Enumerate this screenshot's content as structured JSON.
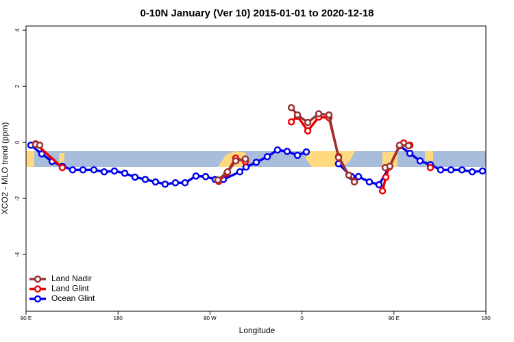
{
  "chart_data": {
    "type": "line",
    "title": "0-10N January (Ver 10)   2015-01-01 to 2020-12-18",
    "x_label": "Longitude",
    "y_label": "XCO2 - MLO trend (ppm)",
    "xlim": [
      90,
      540
    ],
    "ylim": [
      -6.02,
      4.15
    ],
    "xticks": [
      {
        "value": 90,
        "label": "90 E"
      },
      180,
      {
        "value": 270,
        "label": "90 W"
      },
      {
        "value": 360,
        "label": "0"
      },
      {
        "value": 450,
        "label": "90 E"
      },
      {
        "value": 540,
        "label": "180"
      }
    ],
    "yticks": [
      4,
      2,
      0,
      -2,
      -4
    ],
    "legend": "bottomleft",
    "series": [
      {
        "name": "Land Nadir",
        "color": "#993333",
        "x": [
          99.4,
          103.4,
          null,
          277.8,
          287.2,
          295.2,
          304.6,
          null,
          349.6,
          355.6,
          365.7,
          376.4,
          386.4,
          395.8,
          405.9,
          411.3,
          null,
          441.4,
          446.0,
          455.5,
          464.2
        ],
        "values": [
          -0.07,
          -0.1,
          null,
          -1.34,
          -1.05,
          -0.66,
          -0.59,
          null,
          1.24,
          0.98,
          0.71,
          1.02,
          0.98,
          -0.54,
          -1.17,
          -1.41,
          null,
          -0.9,
          -0.85,
          -0.1,
          -0.12
        ]
      },
      {
        "name": "Land Glint",
        "color": "#ee0000",
        "x": [
          99.4,
          125.5,
          null,
          278.5,
          286.5,
          295.2,
          304.6,
          null,
          349.6,
          355.6,
          365.7,
          376.4,
          386.4,
          395.8,
          405.9,
          411.3,
          null,
          438.8,
          442.1,
          445.5,
          455.5,
          459.5,
          465.6,
          null,
          485.7
        ],
        "values": [
          -0.05,
          -0.9,
          null,
          -1.39,
          -1.1,
          -0.56,
          -0.68,
          null,
          0.73,
          0.93,
          0.41,
          0.9,
          0.88,
          -0.51,
          -1.17,
          -1.39,
          null,
          -1.73,
          -1.24,
          -0.88,
          -0.12,
          -0.02,
          -0.1,
          null,
          -0.9
        ]
      },
      {
        "name": "Ocean Glint",
        "color": "#0000ee",
        "x": [
          94.7,
          105.4,
          115.5,
          125.5,
          135.6,
          145.7,
          156.4,
          166.5,
          176.5,
          186.6,
          196.6,
          206.7,
          216.7,
          226.1,
          236.2,
          245.6,
          256.3,
          265.7,
          275.1,
          283.1,
          299.2,
          305.3,
          315.3,
          326.1,
          336.1,
          345.5,
          355.6,
          364.3,
          null,
          395.8,
          408.6,
          415.3,
          426.0,
          435.4,
          445.5,
          455.5,
          465.6,
          475.6,
          485.7,
          495.7,
          505.8,
          516.6,
          526.6,
          536.7
        ],
        "values": [
          -0.1,
          -0.41,
          -0.68,
          -0.85,
          -0.98,
          -0.98,
          -0.98,
          -1.05,
          -1.02,
          -1.1,
          -1.24,
          -1.32,
          -1.41,
          -1.49,
          -1.44,
          -1.44,
          -1.2,
          -1.22,
          -1.32,
          -1.32,
          -1.05,
          -0.88,
          -0.71,
          -0.51,
          -0.27,
          -0.32,
          -0.46,
          -0.34,
          null,
          -0.76,
          -1.22,
          -1.22,
          -1.41,
          -1.51,
          -0.88,
          -0.12,
          -0.39,
          -0.66,
          -0.8,
          -0.98,
          -0.98,
          -0.98,
          -1.05,
          -1.02
        ]
      }
    ]
  }
}
